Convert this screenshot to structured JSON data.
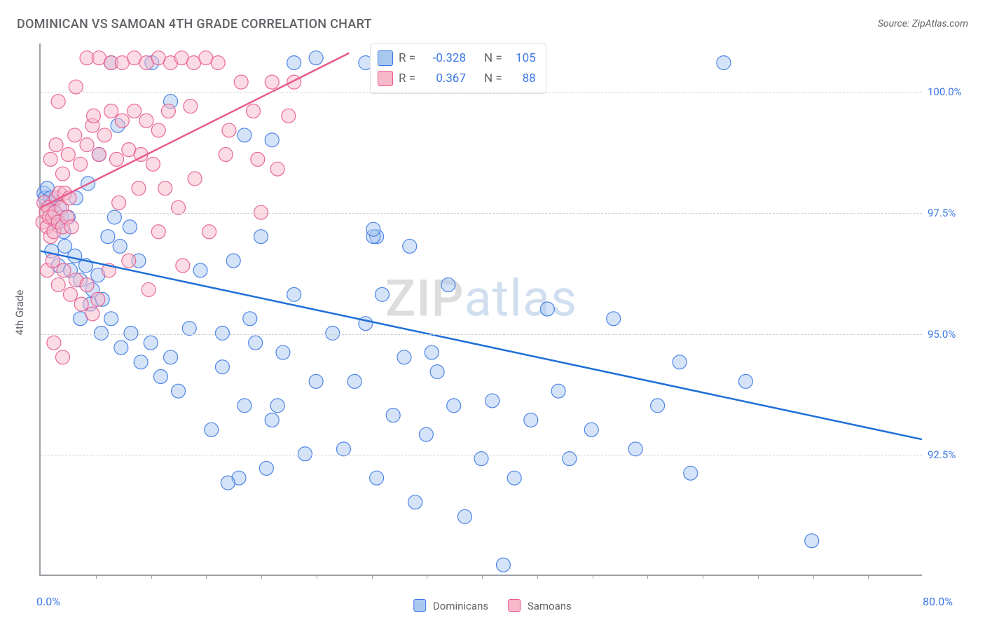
{
  "title": "DOMINICAN VS SAMOAN 4TH GRADE CORRELATION CHART",
  "source": "Source: ZipAtlas.com",
  "watermark": {
    "part1": "ZIP",
    "part2": "atlas"
  },
  "ylabel": "4th Grade",
  "chart": {
    "type": "scatter-with-regression",
    "background_color": "#ffffff",
    "grid_color": "#d0d0d0",
    "axis_color": "#9aa0a6",
    "xlim": [
      0,
      80
    ],
    "ylim": [
      90.0,
      101.0
    ],
    "x_min_label": "0.0%",
    "x_max_label": "80.0%",
    "ytick_labels": [
      "92.5%",
      "95.0%",
      "97.5%",
      "100.0%"
    ],
    "ytick_values": [
      92.5,
      95.0,
      97.5,
      100.0
    ],
    "xtick_values": [
      5,
      10,
      15,
      20,
      25,
      30,
      35,
      40,
      45,
      50,
      55,
      60,
      65,
      70,
      75
    ],
    "marker_radius": 10,
    "marker_opacity": 0.5,
    "marker_stroke_opacity": 0.9,
    "line_width": 2.5,
    "series": [
      {
        "name": "Dominicans",
        "fill": "#a9c8f0",
        "stroke": "#3b78e7",
        "line_color": "#1f6fd8",
        "R": "-0.328",
        "N": "105",
        "regression": {
          "x1": 0,
          "y1": 96.7,
          "x2": 80,
          "y2": 92.8
        },
        "points": [
          [
            0.3,
            97.9
          ],
          [
            0.4,
            97.8
          ],
          [
            0.6,
            98.0
          ],
          [
            0.8,
            97.6
          ],
          [
            0.9,
            97.8
          ],
          [
            1.1,
            97.7
          ],
          [
            1.3,
            97.5
          ],
          [
            1.4,
            97.3
          ],
          [
            1.7,
            97.6
          ],
          [
            1.9,
            97.4
          ],
          [
            1.0,
            96.7
          ],
          [
            1.6,
            96.4
          ],
          [
            2.2,
            96.8
          ],
          [
            2.7,
            96.3
          ],
          [
            3.1,
            96.6
          ],
          [
            3.6,
            96.1
          ],
          [
            4.1,
            96.4
          ],
          [
            4.7,
            95.9
          ],
          [
            5.2,
            96.2
          ],
          [
            5.6,
            95.7
          ],
          [
            2.1,
            97.1
          ],
          [
            2.5,
            97.4
          ],
          [
            3.2,
            97.8
          ],
          [
            4.3,
            98.1
          ],
          [
            5.3,
            98.7
          ],
          [
            6.1,
            97.0
          ],
          [
            6.7,
            97.4
          ],
          [
            7.2,
            96.8
          ],
          [
            8.1,
            97.2
          ],
          [
            8.9,
            96.5
          ],
          [
            3.6,
            95.3
          ],
          [
            4.5,
            95.6
          ],
          [
            5.5,
            95.0
          ],
          [
            6.4,
            95.3
          ],
          [
            7.3,
            94.7
          ],
          [
            8.2,
            95.0
          ],
          [
            9.1,
            94.4
          ],
          [
            10.0,
            94.8
          ],
          [
            10.9,
            94.1
          ],
          [
            11.8,
            94.5
          ],
          [
            6.4,
            100.6
          ],
          [
            10.1,
            100.6
          ],
          [
            23.0,
            100.6
          ],
          [
            25.0,
            100.7
          ],
          [
            29.5,
            100.6
          ],
          [
            30.5,
            97.0
          ],
          [
            31.0,
            95.8
          ],
          [
            33.5,
            96.8
          ],
          [
            35.5,
            94.6
          ],
          [
            37.0,
            96.0
          ],
          [
            16.5,
            95.0
          ],
          [
            17.5,
            96.5
          ],
          [
            18.0,
            92.0
          ],
          [
            19.0,
            95.3
          ],
          [
            20.0,
            97.0
          ],
          [
            21.0,
            93.2
          ],
          [
            22.0,
            94.6
          ],
          [
            23.0,
            95.8
          ],
          [
            24.0,
            92.5
          ],
          [
            25.0,
            94.0
          ],
          [
            12.5,
            93.8
          ],
          [
            13.5,
            95.1
          ],
          [
            14.5,
            96.3
          ],
          [
            15.5,
            93.0
          ],
          [
            16.5,
            94.3
          ],
          [
            17.0,
            91.9
          ],
          [
            18.5,
            93.5
          ],
          [
            19.5,
            94.8
          ],
          [
            20.5,
            92.2
          ],
          [
            21.5,
            93.5
          ],
          [
            26.5,
            95.0
          ],
          [
            27.5,
            92.6
          ],
          [
            28.5,
            94.0
          ],
          [
            29.5,
            95.2
          ],
          [
            30.5,
            92.0
          ],
          [
            32.0,
            93.3
          ],
          [
            33.0,
            94.5
          ],
          [
            34.0,
            91.5
          ],
          [
            35.0,
            92.9
          ],
          [
            36.0,
            94.2
          ],
          [
            37.5,
            93.5
          ],
          [
            38.5,
            91.2
          ],
          [
            40.0,
            92.4
          ],
          [
            41.0,
            93.6
          ],
          [
            42.0,
            90.2
          ],
          [
            43.0,
            92.0
          ],
          [
            44.5,
            93.2
          ],
          [
            46.0,
            95.5
          ],
          [
            47.0,
            93.8
          ],
          [
            48.0,
            92.4
          ],
          [
            50.0,
            93.0
          ],
          [
            52.0,
            95.3
          ],
          [
            54.0,
            92.6
          ],
          [
            56.0,
            93.5
          ],
          [
            58.0,
            94.4
          ],
          [
            59.0,
            92.1
          ],
          [
            62.0,
            100.6
          ],
          [
            64.0,
            94.0
          ],
          [
            70.0,
            90.7
          ],
          [
            21.0,
            99.0
          ],
          [
            7.0,
            99.3
          ],
          [
            11.8,
            99.8
          ],
          [
            18.5,
            99.1
          ],
          [
            30.2,
            97.0
          ],
          [
            30.2,
            97.15
          ]
        ]
      },
      {
        "name": "Samoans",
        "fill": "#f7b8c9",
        "stroke": "#e75a8d",
        "line_color": "#e75a8d",
        "R": "0.367",
        "N": "88",
        "regression": {
          "x1": 0,
          "y1": 97.6,
          "x2": 28,
          "y2": 100.8
        },
        "points": [
          [
            0.2,
            97.3
          ],
          [
            0.3,
            97.7
          ],
          [
            0.5,
            97.5
          ],
          [
            0.6,
            97.2
          ],
          [
            0.7,
            97.6
          ],
          [
            0.8,
            97.4
          ],
          [
            0.9,
            97.0
          ],
          [
            1.1,
            97.4
          ],
          [
            1.2,
            97.1
          ],
          [
            1.3,
            97.5
          ],
          [
            1.4,
            97.8
          ],
          [
            1.6,
            97.3
          ],
          [
            1.7,
            97.9
          ],
          [
            1.9,
            97.6
          ],
          [
            2.0,
            97.2
          ],
          [
            2.2,
            97.9
          ],
          [
            2.4,
            97.4
          ],
          [
            2.6,
            97.8
          ],
          [
            2.8,
            97.2
          ],
          [
            0.6,
            96.3
          ],
          [
            1.1,
            96.5
          ],
          [
            1.6,
            96.0
          ],
          [
            2.1,
            96.3
          ],
          [
            2.7,
            95.8
          ],
          [
            3.2,
            96.1
          ],
          [
            3.7,
            95.6
          ],
          [
            4.2,
            96.0
          ],
          [
            4.7,
            95.4
          ],
          [
            5.2,
            95.7
          ],
          [
            0.9,
            98.6
          ],
          [
            1.4,
            98.9
          ],
          [
            2.0,
            98.3
          ],
          [
            2.5,
            98.7
          ],
          [
            3.1,
            99.1
          ],
          [
            3.6,
            98.5
          ],
          [
            4.2,
            98.9
          ],
          [
            4.7,
            99.3
          ],
          [
            5.3,
            98.7
          ],
          [
            5.8,
            99.1
          ],
          [
            6.4,
            99.6
          ],
          [
            6.9,
            98.6
          ],
          [
            7.4,
            99.4
          ],
          [
            8.0,
            98.8
          ],
          [
            8.5,
            99.6
          ],
          [
            9.1,
            98.7
          ],
          [
            9.6,
            99.4
          ],
          [
            10.2,
            98.5
          ],
          [
            10.7,
            99.2
          ],
          [
            11.3,
            98.0
          ],
          [
            2.0,
            94.5
          ],
          [
            6.2,
            96.3
          ],
          [
            7.1,
            97.7
          ],
          [
            8.0,
            96.5
          ],
          [
            8.9,
            98.0
          ],
          [
            9.8,
            95.9
          ],
          [
            10.7,
            97.1
          ],
          [
            11.6,
            99.6
          ],
          [
            12.5,
            97.6
          ],
          [
            4.2,
            100.7
          ],
          [
            5.3,
            100.7
          ],
          [
            6.4,
            100.6
          ],
          [
            7.4,
            100.6
          ],
          [
            8.5,
            100.7
          ],
          [
            9.6,
            100.6
          ],
          [
            10.7,
            100.7
          ],
          [
            11.8,
            100.6
          ],
          [
            12.8,
            100.7
          ],
          [
            13.9,
            100.6
          ],
          [
            15.0,
            100.7
          ],
          [
            16.1,
            100.6
          ],
          [
            17.1,
            99.2
          ],
          [
            18.2,
            100.2
          ],
          [
            19.3,
            99.6
          ],
          [
            20.0,
            97.5
          ],
          [
            21.0,
            100.2
          ],
          [
            21.5,
            98.4
          ],
          [
            22.5,
            99.5
          ],
          [
            23.0,
            100.2
          ],
          [
            1.6,
            99.8
          ],
          [
            3.2,
            100.1
          ],
          [
            4.8,
            99.5
          ],
          [
            1.2,
            94.8
          ],
          [
            14.0,
            98.2
          ],
          [
            15.3,
            97.1
          ],
          [
            16.8,
            98.7
          ],
          [
            12.9,
            96.4
          ],
          [
            19.7,
            98.6
          ],
          [
            13.6,
            99.7
          ]
        ]
      }
    ]
  },
  "legend": {
    "series1_label": "Dominicans",
    "series2_label": "Samoans"
  },
  "stats_box": {
    "r_label": "R =",
    "n_label": "N ="
  }
}
